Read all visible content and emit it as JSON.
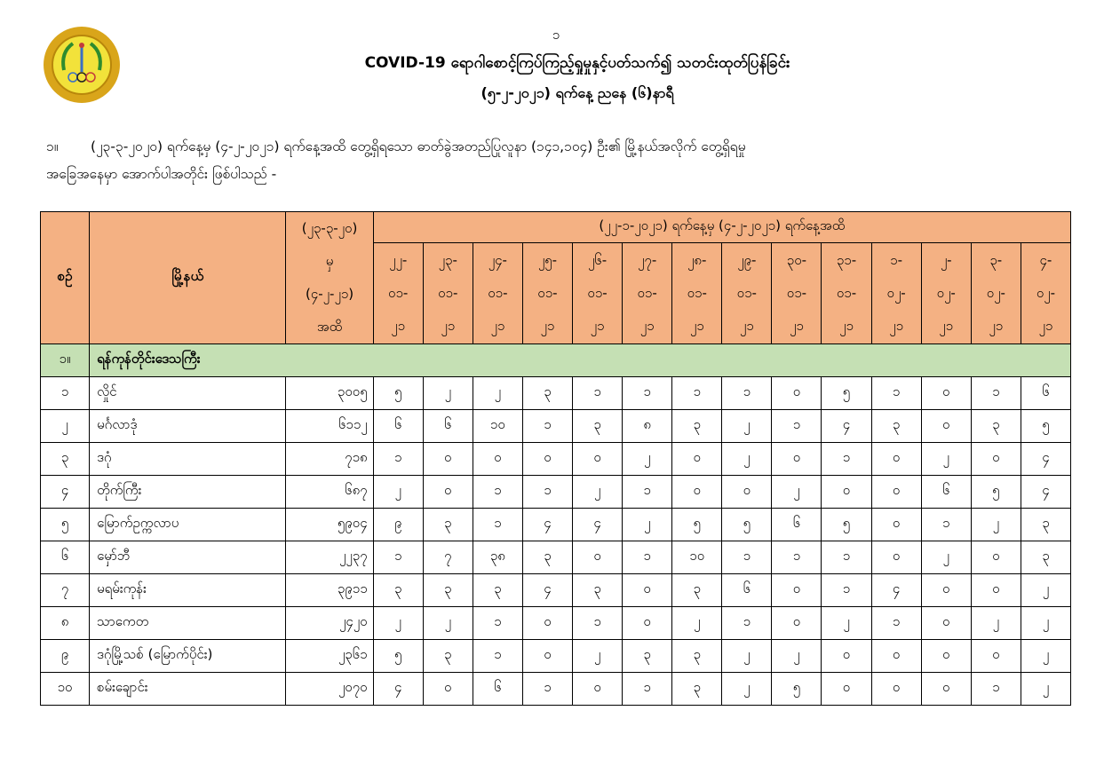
{
  "page_number": "၁",
  "logo_text": "MINISTRY OF HEALTH AND SPORTS",
  "title": "COVID-19 ရောဂါစောင့်ကြပ်ကြည့်ရှုမှုနှင့်ပတ်သက်၍ သတင်းထုတ်ပြန်ခြင်း",
  "subtitle": "(၅-၂-၂၀၂၁) ရက်နေ့ ညနေ (၆)နာရီ",
  "paragraph": {
    "number": "၁။",
    "line1": "(၂၃-၃-၂၀၂၀) ရက်နေ့မှ (၄-၂-၂၀၂၁) ရက်နေ့အထိ တွေ့ရှိရသော ဓာတ်ခွဲအတည်ပြုလူနာ (၁၄၁,၁၀၄) ဦး၏ မြို့နယ်အလိုက် တွေ့ရှိရမှု",
    "line2": "အခြေအနေမှာ အောက်ပါအတိုင်း ဖြစ်ပါသည် -"
  },
  "table": {
    "col_no": "စဉ်",
    "col_township": "မြို့နယ်",
    "col_total": [
      "(၂၃-၃-၂၀)",
      "မှ",
      "(၄-၂-၂၁)",
      "အထိ"
    ],
    "col_range": "(၂၂-၁-၂၀၂၁) ရက်နေ့မှ (၄-၂-၂၀၂၁) ရက်နေ့အထိ",
    "dates": [
      [
        "၂၂-",
        "၀၁-",
        "၂၁"
      ],
      [
        "၂၃-",
        "၀၁-",
        "၂၁"
      ],
      [
        "၂၄-",
        "၀၁-",
        "၂၁"
      ],
      [
        "၂၅-",
        "၀၁-",
        "၂၁"
      ],
      [
        "၂၆-",
        "၀၁-",
        "၂၁"
      ],
      [
        "၂၇-",
        "၀၁-",
        "၂၁"
      ],
      [
        "၂၈-",
        "၀၁-",
        "၂၁"
      ],
      [
        "၂၉-",
        "၀၁-",
        "၂၁"
      ],
      [
        "၃၀-",
        "၀၁-",
        "၂၁"
      ],
      [
        "၃၁-",
        "၀၁-",
        "၂၁"
      ],
      [
        "၁-",
        "၀၂-",
        "၂၁"
      ],
      [
        "၂-",
        "၀၂-",
        "၂၁"
      ],
      [
        "၃-",
        "၀၂-",
        "၂၁"
      ],
      [
        "၄-",
        "၀၂-",
        "၂၁"
      ]
    ],
    "section": {
      "no": "၁။",
      "name": "ရန်ကုန်တိုင်းဒေသကြီး"
    },
    "rows": [
      {
        "no": "၁",
        "name": "လှိုင်",
        "total": "၃၀၀၅",
        "daily": [
          "၅",
          "၂",
          "၂",
          "၃",
          "၁",
          "၁",
          "၁",
          "၁",
          "၀",
          "၅",
          "၁",
          "၀",
          "၁",
          "၆"
        ]
      },
      {
        "no": "၂",
        "name": "မင်္ဂလာဒုံ",
        "total": "၆၁၁၂",
        "daily": [
          "၆",
          "၆",
          "၁၀",
          "၁",
          "၃",
          "၈",
          "၃",
          "၂",
          "၁",
          "၄",
          "၃",
          "၀",
          "၃",
          "၅"
        ]
      },
      {
        "no": "၃",
        "name": "ဒဂုံ",
        "total": "၇၁၈",
        "daily": [
          "၁",
          "၀",
          "၀",
          "၀",
          "၀",
          "၂",
          "၀",
          "၂",
          "၀",
          "၁",
          "၀",
          "၂",
          "၀",
          "၄"
        ]
      },
      {
        "no": "၄",
        "name": "တိုက်ကြီး",
        "total": "၆၈၇",
        "daily": [
          "၂",
          "၀",
          "၁",
          "၁",
          "၂",
          "၁",
          "၀",
          "၀",
          "၂",
          "၀",
          "၀",
          "၆",
          "၅",
          "၄"
        ]
      },
      {
        "no": "၅",
        "name": "မြောက်ဥက္ကလာပ",
        "total": "၅၉၀၄",
        "daily": [
          "၉",
          "၃",
          "၁",
          "၄",
          "၄",
          "၂",
          "၅",
          "၅",
          "၆",
          "၅",
          "၀",
          "၁",
          "၂",
          "၃"
        ]
      },
      {
        "no": "၆",
        "name": "မှော်ဘီ",
        "total": "၂၂၃၇",
        "daily": [
          "၁",
          "၇",
          "၃၈",
          "၃",
          "၀",
          "၁",
          "၁၀",
          "၁",
          "၁",
          "၁",
          "၀",
          "၂",
          "၀",
          "၃"
        ]
      },
      {
        "no": "၇",
        "name": "မရမ်းကုန်း",
        "total": "၃၉၁၁",
        "daily": [
          "၃",
          "၃",
          "၃",
          "၄",
          "၃",
          "၀",
          "၃",
          "၆",
          "၀",
          "၁",
          "၄",
          "၀",
          "၀",
          "၂"
        ]
      },
      {
        "no": "၈",
        "name": "သာကေတ",
        "total": "၂၄၂၀",
        "daily": [
          "၂",
          "၂",
          "၁",
          "၀",
          "၁",
          "၀",
          "၂",
          "၁",
          "၀",
          "၂",
          "၁",
          "၀",
          "၂",
          "၂"
        ]
      },
      {
        "no": "၉",
        "name": "ဒဂုံမြို့သစ် (မြောက်ပိုင်း)",
        "total": "၂၃၆၁",
        "daily": [
          "၅",
          "၃",
          "၁",
          "၀",
          "၂",
          "၃",
          "၃",
          "၂",
          "၂",
          "၀",
          "၀",
          "၀",
          "၀",
          "၂"
        ]
      },
      {
        "no": "၁၀",
        "name": "စမ်းချောင်း",
        "total": "၂၀၇၀",
        "daily": [
          "၄",
          "၀",
          "၆",
          "၁",
          "၀",
          "၁",
          "၃",
          "၂",
          "၅",
          "၀",
          "၀",
          "၀",
          "၁",
          "၂"
        ]
      }
    ]
  },
  "colors": {
    "header_bg": "#f4b183",
    "section_bg": "#c5e0b4",
    "logo_gold": "#e8b820"
  }
}
